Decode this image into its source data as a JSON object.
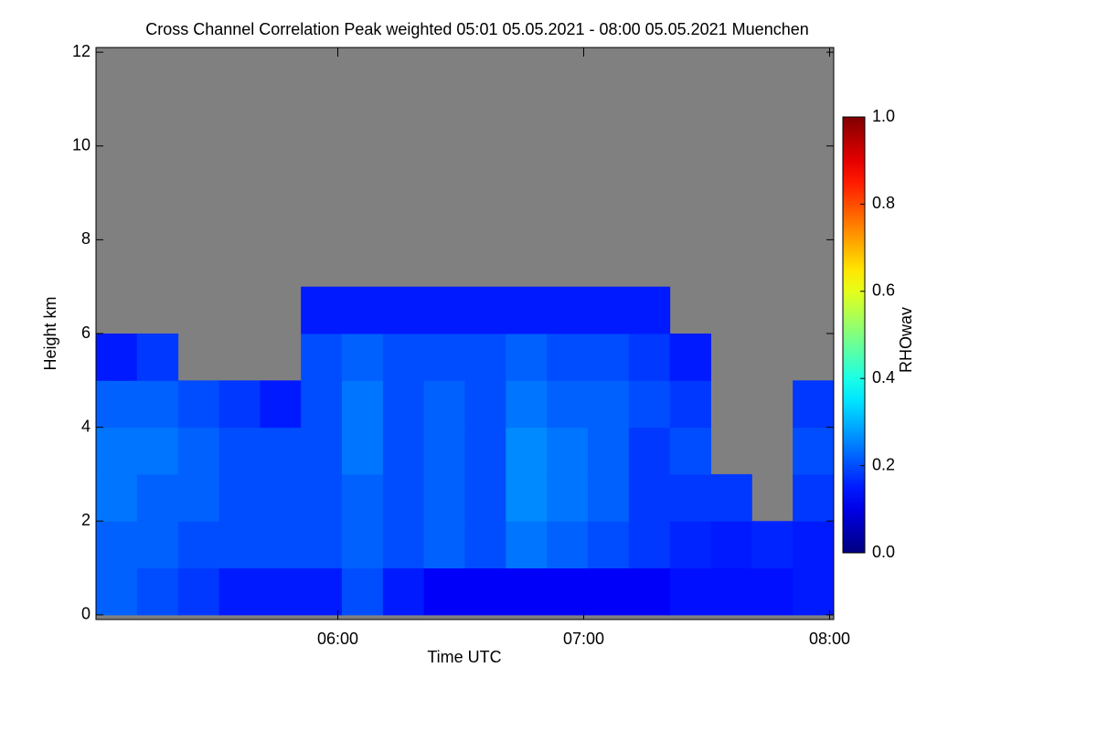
{
  "chart_data": {
    "type": "heatmap",
    "title": "Cross Channel Correlation Peak weighted   05:01 05.05.2021 - 08:00 05.05.2021 Muenchen",
    "x_label": "Time UTC",
    "y_label": "Height km",
    "colorbar_label": "RHOwav",
    "colormap": "jet",
    "missing_color": "#808080",
    "xlim": [
      5.0167,
      8.0167
    ],
    "xticks": [
      {
        "value": 6,
        "label": "06:00"
      },
      {
        "value": 7,
        "label": "07:00"
      },
      {
        "value": 8,
        "label": "08:00"
      }
    ],
    "ylim": [
      -0.1,
      12.1
    ],
    "yticks": [
      0,
      2,
      4,
      6,
      8,
      10,
      12
    ],
    "clim": [
      0,
      1
    ],
    "cticks": [
      {
        "value": 0,
        "label": "0.0"
      },
      {
        "value": 0.2,
        "label": "0.2"
      },
      {
        "value": 0.4,
        "label": "0.4"
      },
      {
        "value": 0.6,
        "label": "0.6"
      },
      {
        "value": 0.8,
        "label": "0.8"
      },
      {
        "value": 1,
        "label": "1.0"
      }
    ],
    "xbins": [
      5.0167,
      5.1833,
      5.35,
      5.5167,
      5.6833,
      5.85,
      6.0167,
      6.1833,
      6.35,
      6.5167,
      6.6833,
      6.85,
      7.0167,
      7.1833,
      7.35,
      7.5167,
      7.6833,
      7.85,
      8.0167
    ],
    "ybins": [
      0,
      1,
      2,
      3,
      4,
      5,
      6,
      7,
      8,
      9,
      10,
      11,
      12
    ],
    "values": [
      [
        0.22,
        0.2,
        0.18,
        0.15,
        0.15,
        0.15,
        0.2,
        0.15,
        0.12,
        0.12,
        0.12,
        0.12,
        0.12,
        0.12,
        0.14,
        0.14,
        0.14,
        0.15
      ],
      [
        0.22,
        0.22,
        0.2,
        0.2,
        0.2,
        0.2,
        0.22,
        0.2,
        0.22,
        0.2,
        0.24,
        0.22,
        0.2,
        0.18,
        0.16,
        0.15,
        0.16,
        0.15
      ],
      [
        0.24,
        0.22,
        0.22,
        0.2,
        0.2,
        0.2,
        0.22,
        0.2,
        0.22,
        0.2,
        0.26,
        0.24,
        0.22,
        0.18,
        0.18,
        0.18,
        null,
        0.18
      ],
      [
        0.24,
        0.24,
        0.22,
        0.2,
        0.2,
        0.2,
        0.24,
        0.2,
        0.22,
        0.2,
        0.26,
        0.24,
        0.22,
        0.18,
        0.2,
        null,
        null,
        0.2
      ],
      [
        0.22,
        0.22,
        0.2,
        0.18,
        0.15,
        0.2,
        0.24,
        0.2,
        0.22,
        0.2,
        0.24,
        0.22,
        0.22,
        0.2,
        0.18,
        null,
        null,
        0.18
      ],
      [
        0.15,
        0.18,
        null,
        null,
        null,
        0.2,
        0.22,
        0.2,
        0.2,
        0.2,
        0.22,
        0.2,
        0.2,
        0.18,
        0.15,
        null,
        null,
        null
      ],
      [
        null,
        null,
        null,
        null,
        null,
        0.15,
        0.15,
        0.15,
        0.15,
        0.15,
        0.15,
        0.15,
        0.15,
        0.15,
        null,
        null,
        null,
        null
      ],
      [
        null,
        null,
        null,
        null,
        null,
        null,
        null,
        null,
        null,
        null,
        null,
        null,
        null,
        null,
        null,
        null,
        null,
        null
      ],
      [
        null,
        null,
        null,
        null,
        null,
        null,
        null,
        null,
        null,
        null,
        null,
        null,
        null,
        null,
        null,
        null,
        null,
        null
      ],
      [
        null,
        null,
        null,
        null,
        null,
        null,
        null,
        null,
        null,
        null,
        null,
        null,
        null,
        null,
        null,
        null,
        null,
        null
      ],
      [
        null,
        null,
        null,
        null,
        null,
        null,
        null,
        null,
        null,
        null,
        null,
        null,
        null,
        null,
        null,
        null,
        null,
        null
      ],
      [
        null,
        null,
        null,
        null,
        null,
        null,
        null,
        null,
        null,
        null,
        null,
        null,
        null,
        null,
        null,
        null,
        null,
        null
      ]
    ]
  }
}
